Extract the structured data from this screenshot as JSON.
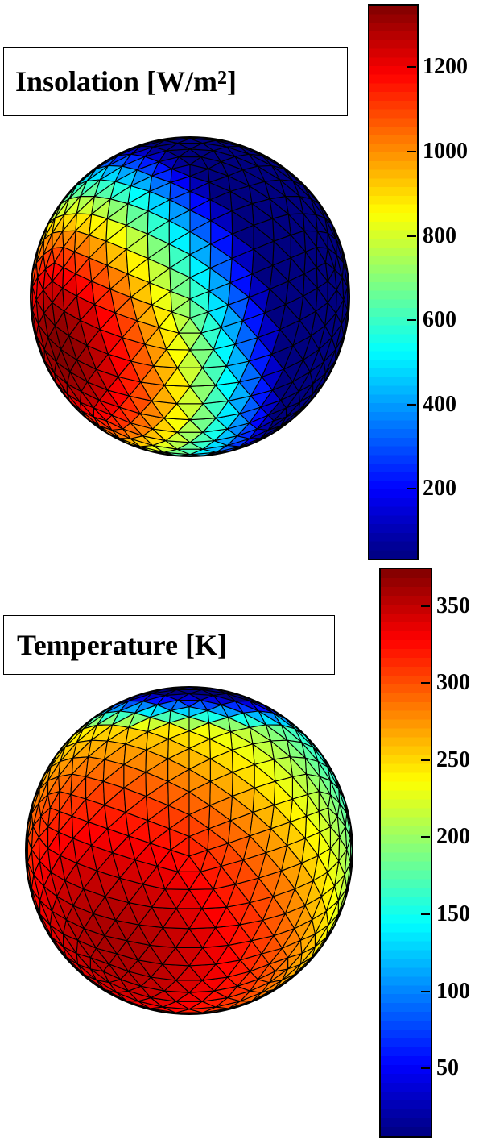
{
  "chart_data": [
    {
      "type": "heatmap",
      "title": "Insolation [W/m",
      "title_superscript": "2",
      "title_suffix": "]",
      "colormap": "jet",
      "clim": [
        30,
        1350
      ],
      "colorbar_ticks": [
        200,
        400,
        600,
        800,
        1000,
        1200
      ],
      "colorbar_labels": [
        "200",
        "400",
        "600",
        "800",
        "1000",
        "1200"
      ],
      "field": "insolation on an icosahedral sphere mesh; maximum toward the lower-left limb, zero on the night side (upper-right)",
      "max_direction": {
        "lon": -60,
        "lat": -20
      }
    },
    {
      "type": "heatmap",
      "title": "Temperature [K]",
      "colormap": "jet",
      "clim": [
        5,
        375
      ],
      "colorbar_ticks": [
        50,
        100,
        150,
        200,
        250,
        300,
        350
      ],
      "colorbar_labels": [
        "50",
        "100",
        "150",
        "200",
        "250",
        "300",
        "350"
      ],
      "field": "surface temperature on an icosahedral sphere mesh; hottest toward the lower-left, coldest near the top pole",
      "max_direction": {
        "lon": -35,
        "lat": -35
      }
    }
  ],
  "colors": {
    "jet_dark_blue": "#00008f",
    "jet_dark_red": "#800000",
    "mesh_edge": "#000000"
  }
}
